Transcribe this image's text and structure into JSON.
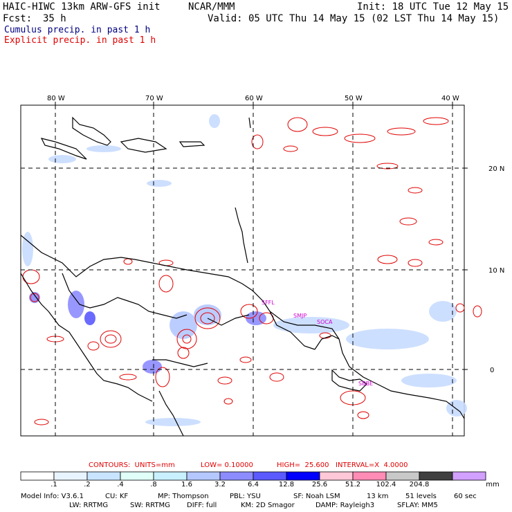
{
  "header": {
    "model": "HAIC-HIWC 13km ARW-GFS init",
    "org": "NCAR/MMM",
    "init": "Init: 18 UTC Tue 12 May 15",
    "fcst_label": "Fcst:",
    "fcst_value": "35 h",
    "valid": "Valid: 05 UTC Thu 14 May 15 (02 LST Thu 14 May 15)",
    "line3": "Cumulus precip. in past 1 h",
    "line4": "Explicit precip. in past 1 h",
    "line3_color": "#000080",
    "line4_color": "#e00000"
  },
  "map": {
    "lon_labels": [
      "80 W",
      "70 W",
      "60 W",
      "50 W",
      "40 W"
    ],
    "lat_labels": [
      "20 N",
      "10 N",
      "0"
    ],
    "stations": [
      "SFFL",
      "SMJP",
      "SOCA",
      "SBBE"
    ],
    "colors": {
      "explicit": "#e00000",
      "cumulus": "#8fa8ff",
      "grid": "#000000"
    }
  },
  "contours": {
    "text": "CONTOURS:  UNITS=mm",
    "low": "LOW= 0.10000",
    "high": "HIGH=  25.600",
    "interval": "INTERVAL=X  4.0000"
  },
  "colorbar": {
    "ticks": [
      ".1",
      ".2",
      ".4",
      ".8",
      "1.6",
      "3.2",
      "6.4",
      "12.8",
      "25.6",
      "51.2",
      "102.4",
      "204.8"
    ],
    "units": "mm",
    "colors": [
      "#ffffff",
      "#e8f4ff",
      "#c8e4ff",
      "#e0fff8",
      "#c8f0ff",
      "#b4c8ff",
      "#8c8cff",
      "#5a5aff",
      "#0000ff",
      "#ffc8d8",
      "#ff8cb4",
      "#c8c8c8",
      "#404040",
      "#d2a0ff"
    ]
  },
  "model_info": {
    "line1": [
      "Model Info: V3.6.1",
      "CU: KF",
      "MP: Thompson",
      "PBL: YSU",
      "SF: Noah LSM",
      "13 km",
      "51 levels",
      "60 sec"
    ],
    "line2": [
      "LW: RRTMG",
      "SW: RRTMG",
      "DIFF: full",
      "KM: 2D Smagor",
      "DAMP: Rayleigh3",
      "SFLAY: MM5"
    ]
  }
}
